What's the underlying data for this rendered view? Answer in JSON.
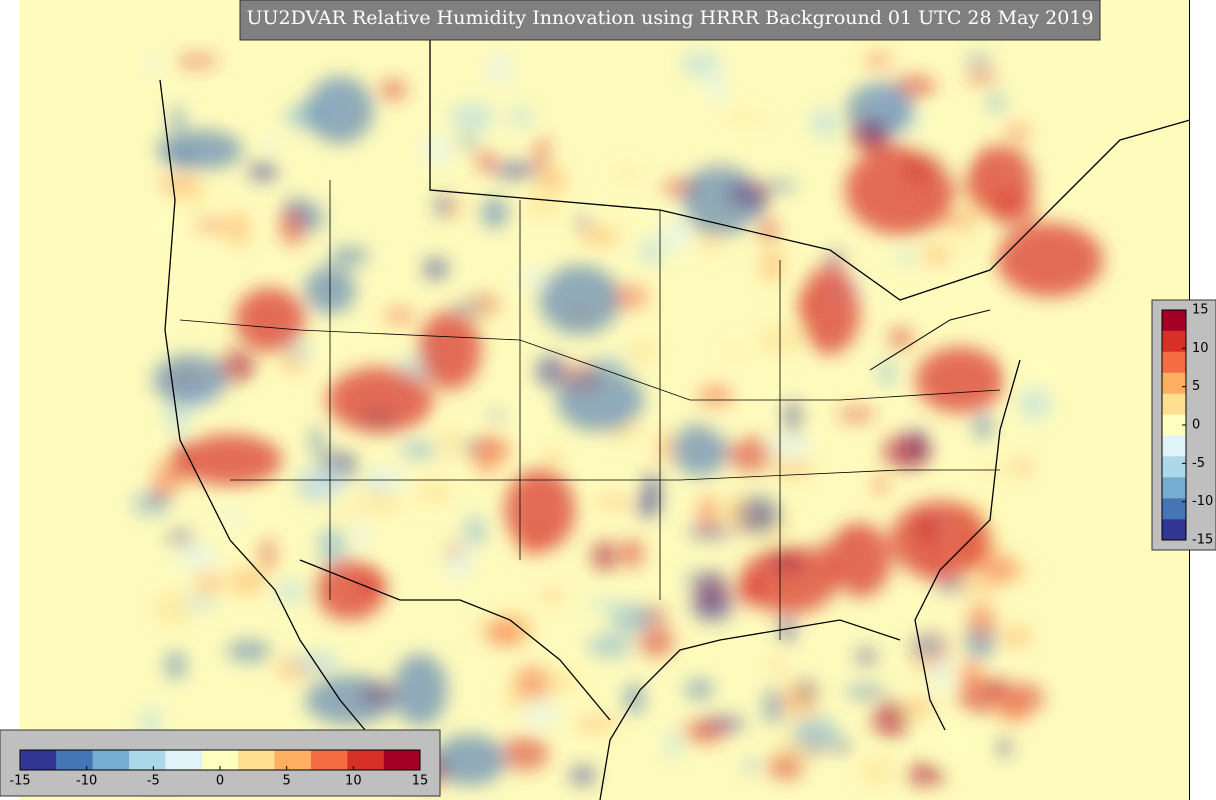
{
  "title": "UU2DVAR Relative Humidity Innovation using HRRR Background 01 UTC 28 May 2019",
  "colors": [
    "#313695",
    "#4575b4",
    "#74add1",
    "#abd9e9",
    "#e0f3f8",
    "#ffffbf",
    "#fee090",
    "#fdae61",
    "#f46d43",
    "#d73027",
    "#a50026"
  ],
  "colorbars": [
    {
      "orientation": "vertical",
      "lim": [
        -15,
        15
      ],
      "ticks": [
        15,
        10,
        5,
        0,
        -5,
        -10,
        -15
      ]
    },
    {
      "orientation": "horizontal",
      "lim": [
        -15,
        15
      ],
      "ticks": [
        -15,
        -10,
        -5,
        0,
        5,
        10,
        15
      ]
    }
  ]
}
